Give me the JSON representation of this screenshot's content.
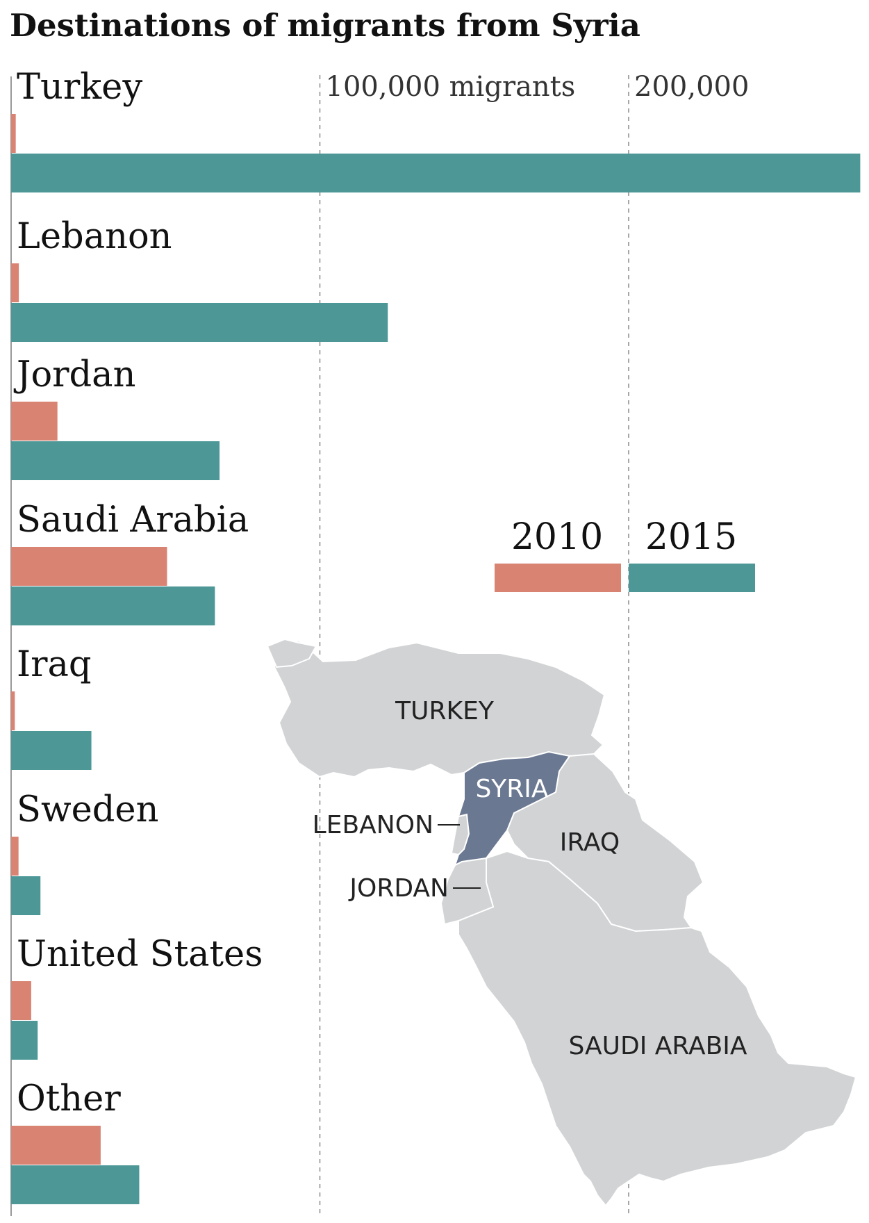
{
  "chart_data": {
    "type": "bar",
    "orientation": "horizontal",
    "title": "Destinations of migrants from Syria",
    "categories": [
      "Turkey",
      "Lebanon",
      "Jordan",
      "Saudi Arabia",
      "Iraq",
      "Sweden",
      "United States",
      "Other"
    ],
    "series": [
      {
        "name": "2010",
        "color": "#d98373",
        "values": [
          1500,
          2500,
          15000,
          50500,
          1200,
          2400,
          6500,
          29000
        ]
      },
      {
        "name": "2015",
        "color": "#4d9797",
        "values": [
          275000,
          122000,
          67500,
          66000,
          26000,
          9500,
          8600,
          41500
        ]
      }
    ],
    "x_ticks": [
      {
        "value": 100000,
        "label": "100,000 migrants"
      },
      {
        "value": 200000,
        "label": "200,000"
      }
    ],
    "xlim": [
      0,
      280000
    ],
    "grid": "dashed vertical lines at ticks",
    "legend": "right, above map"
  },
  "map": {
    "labels": {
      "turkey": "TURKEY",
      "syria": "SYRIA",
      "lebanon": "LEBANON",
      "jordan": "JORDAN",
      "iraq": "IRAQ",
      "saudi": "SAUDI ARABIA"
    },
    "colors": {
      "land": "#d2d3d5",
      "syria": "#6a7891",
      "border": "#ffffff"
    }
  }
}
